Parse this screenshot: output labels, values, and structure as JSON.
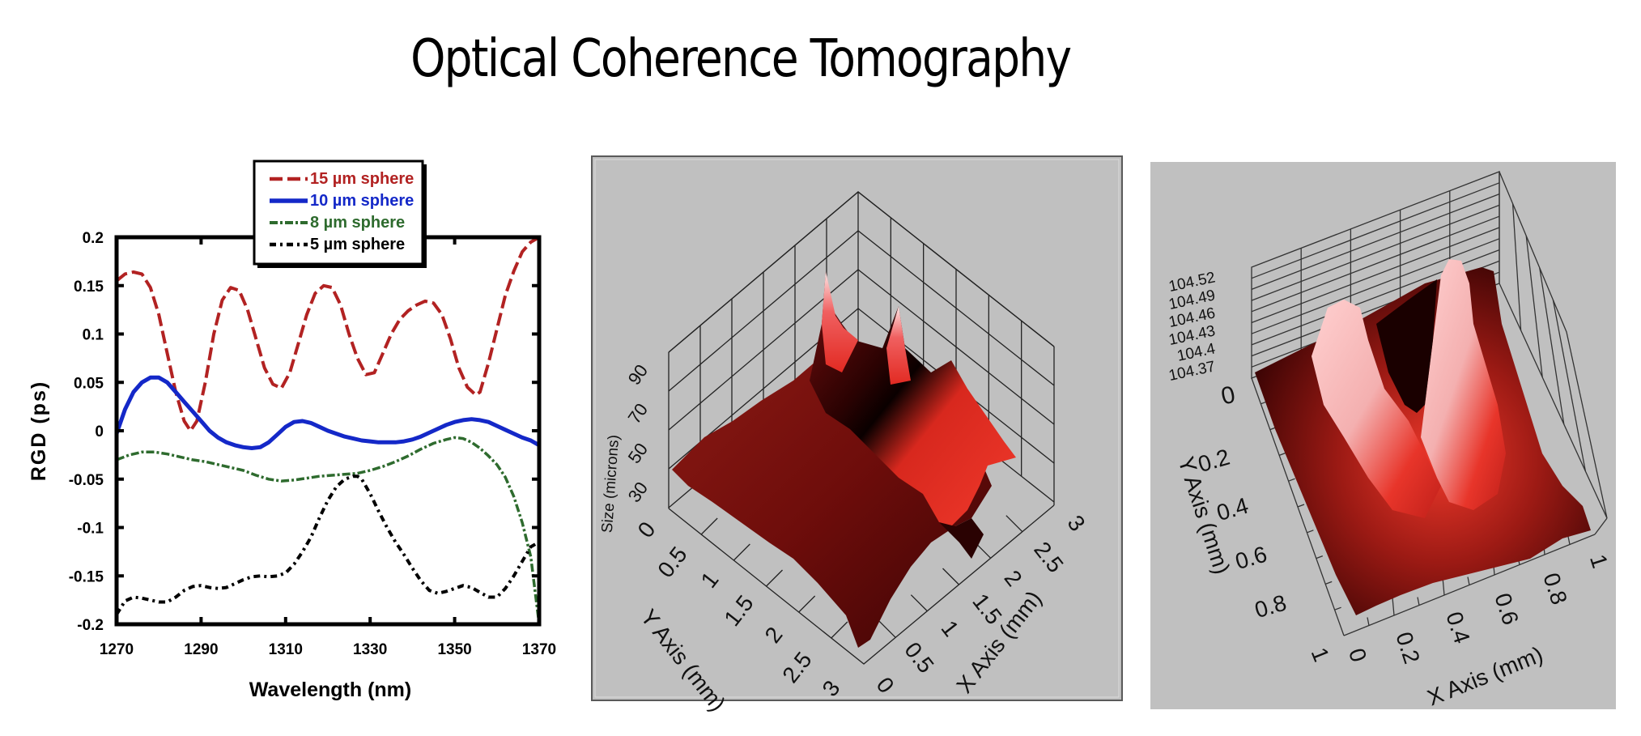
{
  "page": {
    "title": "Optical Coherence Tomography"
  },
  "chart_data": [
    {
      "type": "line",
      "title": "",
      "xlabel": "Wavelength (nm)",
      "ylabel": "RGD (ps)",
      "xlim": [
        1270,
        1370
      ],
      "ylim": [
        -0.2,
        0.2
      ],
      "x_ticks": [
        "1270",
        "1290",
        "1310",
        "1330",
        "1350",
        "1370"
      ],
      "y_ticks": [
        "0.2",
        "0.15",
        "0.1",
        "0.05",
        "0",
        "-0.05",
        "-0.1",
        "-0.15",
        "-0.2"
      ],
      "grid": false,
      "legend_position": "top-center",
      "series": [
        {
          "name": "15 µm sphere",
          "legend_label": "15 µm sphere",
          "color": "#b22222",
          "style": "dashed",
          "x": [
            1270,
            1272,
            1274,
            1276,
            1278,
            1280,
            1282,
            1284,
            1286,
            1287.5,
            1289,
            1291,
            1293,
            1295,
            1297,
            1299,
            1301,
            1303,
            1305,
            1307,
            1309,
            1311,
            1313,
            1315,
            1317,
            1319,
            1321,
            1323,
            1325,
            1327,
            1329,
            1331,
            1333,
            1335,
            1337,
            1339,
            1341,
            1343,
            1345,
            1347,
            1349,
            1351,
            1353,
            1355,
            1356,
            1358,
            1360,
            1362,
            1364,
            1366,
            1368,
            1370
          ],
          "y": [
            0.155,
            0.162,
            0.164,
            0.162,
            0.148,
            0.12,
            0.08,
            0.04,
            0.01,
            0.0,
            0.01,
            0.05,
            0.1,
            0.135,
            0.148,
            0.145,
            0.125,
            0.095,
            0.065,
            0.048,
            0.044,
            0.06,
            0.09,
            0.12,
            0.142,
            0.15,
            0.148,
            0.13,
            0.1,
            0.075,
            0.058,
            0.06,
            0.08,
            0.1,
            0.115,
            0.124,
            0.13,
            0.134,
            0.132,
            0.12,
            0.095,
            0.065,
            0.045,
            0.037,
            0.04,
            0.07,
            0.105,
            0.14,
            0.165,
            0.185,
            0.195,
            0.2
          ]
        },
        {
          "name": "10 µm sphere",
          "legend_label": "10 µm sphere",
          "color": "#1428c8",
          "style": "solid",
          "x": [
            1270,
            1272,
            1274,
            1276,
            1278,
            1280,
            1282,
            1284,
            1286,
            1288,
            1290,
            1292,
            1294,
            1296,
            1298,
            1300,
            1302,
            1304,
            1306,
            1308,
            1310,
            1312,
            1314,
            1316,
            1318,
            1320,
            1322,
            1324,
            1326,
            1328,
            1330,
            1332,
            1334,
            1336,
            1338,
            1340,
            1342,
            1344,
            1346,
            1348,
            1350,
            1352,
            1354,
            1356,
            1358,
            1360,
            1362,
            1364,
            1366,
            1368,
            1370
          ],
          "y": [
            -0.003,
            0.022,
            0.04,
            0.05,
            0.055,
            0.055,
            0.05,
            0.04,
            0.03,
            0.02,
            0.01,
            0.0,
            -0.007,
            -0.012,
            -0.015,
            -0.017,
            -0.018,
            -0.017,
            -0.012,
            -0.004,
            0.004,
            0.009,
            0.01,
            0.008,
            0.004,
            0.0,
            -0.003,
            -0.006,
            -0.008,
            -0.01,
            -0.011,
            -0.012,
            -0.012,
            -0.012,
            -0.011,
            -0.009,
            -0.006,
            -0.002,
            0.002,
            0.006,
            0.009,
            0.011,
            0.012,
            0.011,
            0.009,
            0.005,
            0.001,
            -0.003,
            -0.007,
            -0.01,
            -0.015
          ]
        },
        {
          "name": "8 µm sphere",
          "legend_label": "8 µm sphere",
          "color": "#2e6b2e",
          "style": "dash-dot",
          "x": [
            1270,
            1273,
            1276,
            1279,
            1282,
            1285,
            1288,
            1291,
            1294,
            1297,
            1300,
            1303,
            1306,
            1309,
            1312,
            1315,
            1318,
            1321,
            1324,
            1327,
            1330,
            1333,
            1336,
            1339,
            1342,
            1345,
            1348,
            1350,
            1352,
            1354,
            1356,
            1358,
            1360,
            1362,
            1364,
            1366,
            1368,
            1369,
            1370
          ],
          "y": [
            -0.03,
            -0.025,
            -0.022,
            -0.022,
            -0.024,
            -0.027,
            -0.03,
            -0.032,
            -0.035,
            -0.038,
            -0.041,
            -0.046,
            -0.05,
            -0.052,
            -0.051,
            -0.049,
            -0.047,
            -0.046,
            -0.045,
            -0.044,
            -0.041,
            -0.037,
            -0.032,
            -0.026,
            -0.019,
            -0.013,
            -0.009,
            -0.007,
            -0.008,
            -0.012,
            -0.018,
            -0.026,
            -0.035,
            -0.048,
            -0.068,
            -0.095,
            -0.13,
            -0.165,
            -0.2
          ]
        },
        {
          "name": "5 µm sphere",
          "legend_label": "5 µm sphere",
          "color": "#000000",
          "style": "dash-dot-dot",
          "x": [
            1270,
            1272,
            1274,
            1276,
            1278,
            1280,
            1282,
            1284,
            1286,
            1288,
            1290,
            1292,
            1294,
            1296,
            1298,
            1300,
            1302,
            1304,
            1306,
            1308,
            1310,
            1312,
            1314,
            1316,
            1318,
            1320,
            1322,
            1324,
            1326,
            1327,
            1328,
            1330,
            1332,
            1334,
            1336,
            1338,
            1340,
            1342,
            1344,
            1346,
            1348,
            1350,
            1352,
            1354,
            1356,
            1358,
            1360,
            1362,
            1364,
            1366,
            1368,
            1370
          ],
          "y": [
            -0.19,
            -0.176,
            -0.172,
            -0.173,
            -0.175,
            -0.177,
            -0.177,
            -0.172,
            -0.165,
            -0.161,
            -0.16,
            -0.162,
            -0.163,
            -0.162,
            -0.158,
            -0.154,
            -0.151,
            -0.15,
            -0.151,
            -0.15,
            -0.147,
            -0.138,
            -0.125,
            -0.11,
            -0.09,
            -0.072,
            -0.058,
            -0.05,
            -0.047,
            -0.047,
            -0.05,
            -0.065,
            -0.083,
            -0.1,
            -0.115,
            -0.128,
            -0.142,
            -0.155,
            -0.165,
            -0.168,
            -0.166,
            -0.163,
            -0.16,
            -0.162,
            -0.167,
            -0.172,
            -0.172,
            -0.163,
            -0.15,
            -0.135,
            -0.12,
            -0.115
          ]
        }
      ]
    },
    {
      "type": "surface3d",
      "title": "",
      "xlabel": "X Axis (mm)",
      "ylabel": "Y Axis (mm)",
      "zlabel": "Size (microns)",
      "x_ticks": [
        "0",
        "0.5",
        "1",
        "1.5",
        "2",
        "2.5",
        "3"
      ],
      "y_ticks": [
        "0",
        "0.5",
        "1",
        "1.5",
        "2",
        "2.5",
        "3"
      ],
      "z_ticks": [
        "30",
        "50",
        "70",
        "90"
      ],
      "xlim": [
        0,
        3
      ],
      "ylim": [
        0,
        3
      ],
      "colormap": "black-red-white"
    },
    {
      "type": "surface3d",
      "title": "",
      "xlabel": "X Axis (mm)",
      "ylabel": "Y Axis (mm)",
      "zlabel": "",
      "x_ticks": [
        "0",
        "0.2",
        "0.4",
        "0.6",
        "0.8",
        "1"
      ],
      "y_ticks": [
        "0",
        "0.2",
        "0.4",
        "0.6",
        "0.8",
        "1"
      ],
      "z_ticks": [
        "104.37",
        "104.4",
        "104.43",
        "104.46",
        "104.49",
        "104.52"
      ],
      "xlim": [
        0,
        1
      ],
      "ylim": [
        0,
        1
      ],
      "colormap": "black-red-white"
    }
  ]
}
